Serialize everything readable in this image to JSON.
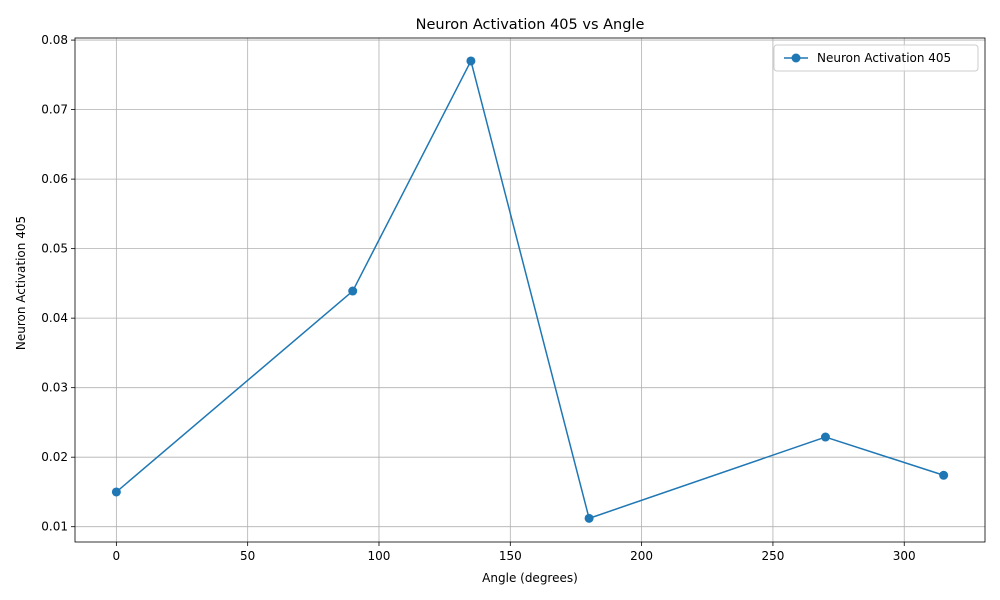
{
  "chart_data": {
    "type": "line",
    "title": "Neuron Activation 405 vs Angle",
    "xlabel": "Angle (degrees)",
    "ylabel": "Neuron Activation 405",
    "xlim": [
      -15.75,
      330.75
    ],
    "ylim": [
      0.0078,
      0.0803
    ],
    "xticks": [
      0,
      50,
      100,
      150,
      200,
      250,
      300
    ],
    "yticks": [
      0.01,
      0.02,
      0.03,
      0.04,
      0.05,
      0.06,
      0.07,
      0.08
    ],
    "xtick_labels": [
      "0",
      "50",
      "100",
      "150",
      "200",
      "250",
      "300"
    ],
    "ytick_labels": [
      "0.01",
      "0.02",
      "0.03",
      "0.04",
      "0.05",
      "0.06",
      "0.07",
      "0.08"
    ],
    "grid": true,
    "legend_position": "top-right",
    "series": [
      {
        "name": "Neuron Activation 405",
        "color": "#1f77b4",
        "marker": "circle",
        "x": [
          0,
          90,
          135,
          180,
          270,
          315
        ],
        "y": [
          0.015,
          0.0439,
          0.077,
          0.0112,
          0.0229,
          0.0174
        ]
      }
    ]
  }
}
